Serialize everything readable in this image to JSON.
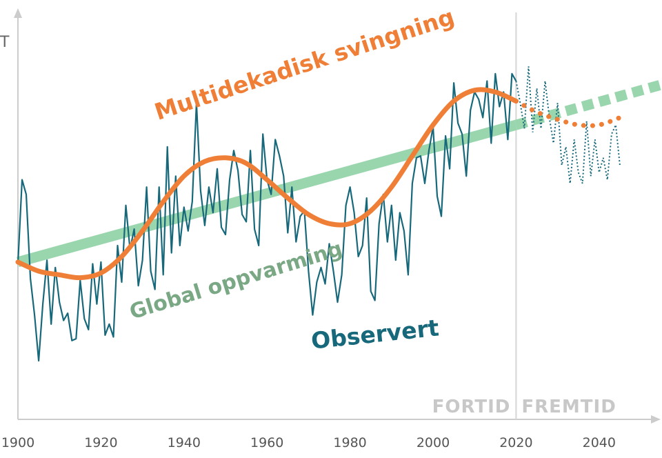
{
  "chart_data": {
    "type": "line",
    "y_axis_label": "T",
    "x_ticks": [
      1900,
      1920,
      1940,
      1960,
      1980,
      2000,
      2020,
      2040
    ],
    "xlim": [
      1900,
      2055
    ],
    "ylim": [
      0,
      10
    ],
    "present_year": 2020,
    "period_labels": {
      "past": "FORTID",
      "future": "FREMTID"
    },
    "colors": {
      "observed": "#16687a",
      "multidecadal": "#ef7e36",
      "global": "#9ad6ad",
      "axis": "#cccccc"
    },
    "series": [
      {
        "name": "Global oppvarming",
        "label_text": "Global oppvarming",
        "x": [
          1900,
          2020,
          2055
        ],
        "y": [
          3.55,
          7.3,
          8.4
        ],
        "dashed_from": 2020
      },
      {
        "name": "Multidekadisk svingning",
        "label_text": "Multidekadisk svingning",
        "x": [
          1900,
          1905,
          1910,
          1915,
          1920,
          1925,
          1930,
          1935,
          1940,
          1945,
          1950,
          1955,
          1960,
          1965,
          1970,
          1975,
          1980,
          1985,
          1990,
          1995,
          2000,
          2005,
          2010,
          2015,
          2020,
          2025,
          2030,
          2035,
          2040,
          2045
        ],
        "y": [
          3.55,
          3.3,
          3.2,
          3.12,
          3.25,
          3.7,
          4.4,
          5.2,
          5.9,
          6.3,
          6.4,
          6.25,
          5.8,
          5.3,
          4.85,
          4.6,
          4.6,
          4.95,
          5.6,
          6.45,
          7.3,
          7.95,
          8.25,
          8.2,
          7.95,
          7.65,
          7.45,
          7.3,
          7.3,
          7.5
        ],
        "dashed_from": 2020
      },
      {
        "name": "Observert",
        "label_text": "Observert",
        "x": [
          1900,
          1901,
          1902,
          1903,
          1904,
          1905,
          1906,
          1907,
          1908,
          1909,
          1910,
          1911,
          1912,
          1913,
          1914,
          1915,
          1916,
          1917,
          1918,
          1919,
          1920,
          1921,
          1922,
          1923,
          1924,
          1925,
          1926,
          1927,
          1928,
          1929,
          1930,
          1931,
          1932,
          1933,
          1934,
          1935,
          1936,
          1937,
          1938,
          1939,
          1940,
          1941,
          1942,
          1943,
          1944,
          1945,
          1946,
          1947,
          1948,
          1949,
          1950,
          1951,
          1952,
          1953,
          1954,
          1955,
          1956,
          1957,
          1958,
          1959,
          1960,
          1961,
          1962,
          1963,
          1964,
          1965,
          1966,
          1967,
          1968,
          1969,
          1970,
          1971,
          1972,
          1973,
          1974,
          1975,
          1976,
          1977,
          1978,
          1979,
          1980,
          1981,
          1982,
          1983,
          1984,
          1985,
          1986,
          1987,
          1988,
          1989,
          1990,
          1991,
          1992,
          1993,
          1994,
          1995,
          1996,
          1997,
          1998,
          1999,
          2000,
          2001,
          2002,
          2003,
          2004,
          2005,
          2006,
          2007,
          2008,
          2009,
          2010,
          2011,
          2012,
          2013,
          2014,
          2015,
          2016,
          2017,
          2018,
          2019,
          2020,
          2021,
          2022,
          2023,
          2024,
          2025,
          2026,
          2027,
          2028,
          2029,
          2030,
          2031,
          2032,
          2033,
          2034,
          2035,
          2036,
          2037,
          2038,
          2039,
          2040,
          2041,
          2042,
          2043,
          2044,
          2045
        ],
        "y": [
          3.5,
          5.8,
          5.4,
          3.1,
          2.1,
          0.85,
          2.4,
          3.6,
          1.85,
          3.4,
          2.45,
          1.95,
          2.15,
          1.4,
          1.45,
          3.05,
          2.0,
          1.7,
          3.5,
          2.4,
          3.55,
          1.55,
          1.85,
          1.5,
          4.0,
          3.0,
          5.1,
          3.9,
          4.45,
          2.9,
          3.6,
          5.6,
          3.3,
          2.8,
          5.6,
          3.2,
          6.7,
          3.8,
          5.9,
          4.0,
          5.05,
          4.4,
          5.2,
          7.9,
          5.5,
          4.55,
          5.6,
          4.9,
          6.1,
          4.5,
          4.3,
          5.8,
          6.6,
          6.05,
          4.85,
          4.65,
          6.6,
          4.45,
          4.0,
          7.05,
          5.8,
          5.4,
          6.9,
          6.45,
          5.9,
          4.35,
          5.6,
          4.1,
          4.8,
          4.95,
          3.3,
          2.1,
          3.0,
          3.4,
          2.95,
          4.05,
          3.3,
          2.45,
          3.2,
          5.1,
          5.6,
          4.9,
          3.7,
          4.0,
          5.3,
          2.75,
          2.5,
          4.6,
          5.4,
          4.1,
          5.1,
          3.6,
          4.9,
          4.4,
          3.2,
          5.7,
          6.4,
          6.45,
          5.7,
          6.6,
          7.25,
          5.35,
          4.8,
          7.0,
          6.1,
          8.45,
          7.35,
          7.05,
          5.9,
          7.7,
          8.2,
          8.0,
          7.5,
          8.5,
          6.8,
          8.7,
          7.8,
          8.2,
          6.9,
          8.7,
          8.5,
          7.9,
          7.2,
          8.9,
          7.1,
          8.3,
          7.2,
          8.5,
          7.5,
          6.8,
          7.9,
          6.2,
          6.7,
          5.7,
          6.9,
          6.0,
          5.7,
          7.4,
          5.9,
          6.9,
          6.0,
          6.4,
          5.8,
          7.05,
          7.3,
          6.2
        ],
        "dashed_from": 2020
      }
    ]
  }
}
